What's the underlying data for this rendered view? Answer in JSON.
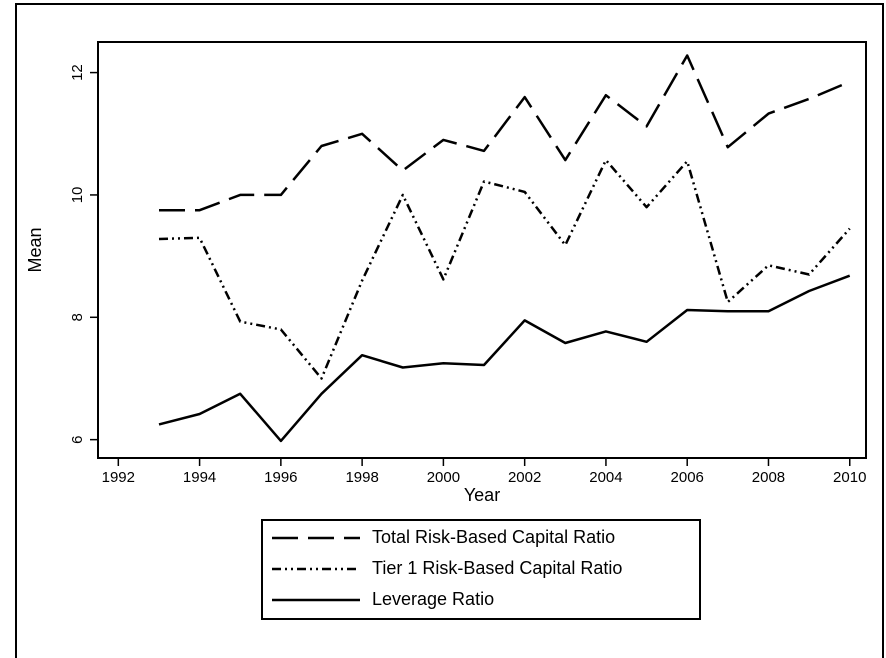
{
  "chart_data": {
    "type": "line",
    "x_label": "Year",
    "y_label": "Mean",
    "x": [
      1993,
      1994,
      1995,
      1996,
      1997,
      1998,
      1999,
      2000,
      2001,
      2002,
      2003,
      2004,
      2005,
      2006,
      2007,
      2008,
      2009,
      2010
    ],
    "series": [
      {
        "name": "Total Risk-Based Capital Ratio",
        "color": "#000000",
        "linestyle": "dashed",
        "values": [
          9.75,
          9.75,
          10.0,
          10.0,
          10.8,
          11.0,
          10.4,
          10.9,
          10.72,
          11.6,
          10.57,
          11.63,
          11.12,
          12.28,
          10.78,
          11.33,
          11.57,
          11.85
        ]
      },
      {
        "name": "Tier 1 Risk-Based Capital Ratio",
        "color": "#000000",
        "linestyle": "dashdot",
        "values": [
          9.28,
          9.3,
          7.93,
          7.8,
          7.0,
          8.6,
          10.0,
          8.62,
          10.22,
          10.05,
          9.18,
          10.57,
          9.8,
          10.55,
          8.25,
          8.85,
          8.7,
          9.45
        ]
      },
      {
        "name": "Leverage Ratio",
        "color": "#000000",
        "linestyle": "solid",
        "values": [
          6.25,
          6.42,
          6.75,
          5.98,
          6.75,
          7.38,
          7.18,
          7.25,
          7.22,
          7.95,
          7.58,
          7.77,
          7.6,
          8.12,
          8.1,
          8.1,
          8.43,
          8.68
        ]
      }
    ],
    "xlim": [
      1991.5,
      2010.4
    ],
    "xticks": [
      1992,
      1994,
      1996,
      1998,
      2000,
      2002,
      2004,
      2006,
      2008,
      2010
    ],
    "ylim": [
      5.7,
      12.5
    ],
    "yticks": [
      6,
      8,
      10,
      12
    ],
    "grid": false,
    "legend_position": "bottom"
  }
}
